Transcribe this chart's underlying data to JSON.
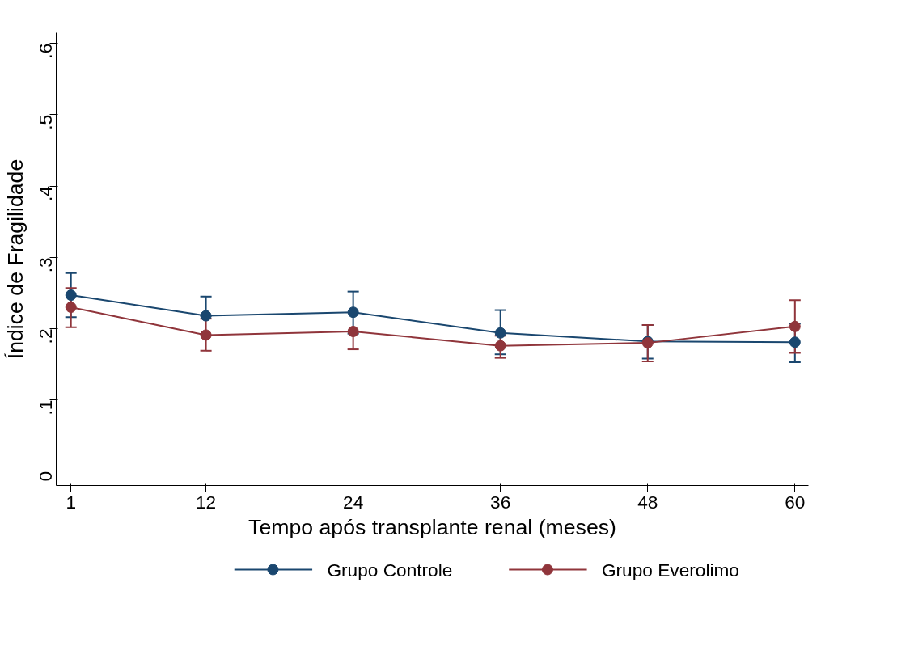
{
  "chart_data": {
    "type": "line",
    "xlabel": "Tempo após transplante renal (meses)",
    "ylabel": "Índice de Fragilidade",
    "x": [
      1,
      12,
      24,
      36,
      48,
      60
    ],
    "series": [
      {
        "name": "Grupo Controle",
        "color": "#1a476f",
        "values": [
          0.247,
          0.218,
          0.223,
          0.194,
          0.182,
          0.181
        ],
        "errors": [
          [
            0.216,
            0.278
          ],
          [
            0.218,
            0.245
          ],
          [
            0.193,
            0.252
          ],
          [
            0.164,
            0.226
          ],
          [
            0.158,
            0.205
          ],
          [
            0.153,
            0.207
          ]
        ]
      },
      {
        "name": "Grupo Everolimo",
        "color": "#90353b",
        "values": [
          0.23,
          0.191,
          0.196,
          0.176,
          0.18,
          0.203
        ],
        "errors": [
          [
            0.202,
            0.257
          ],
          [
            0.169,
            0.214
          ],
          [
            0.171,
            0.196
          ],
          [
            0.159,
            0.19
          ],
          [
            0.154,
            0.205
          ],
          [
            0.166,
            0.24
          ]
        ]
      }
    ],
    "xlim": [
      -0.2,
      61.1
    ],
    "ylim": [
      -0.02,
      0.615
    ],
    "xticks": [
      1,
      12,
      24,
      36,
      48,
      60
    ],
    "yticks": [
      {
        "value": 0,
        "label": "0"
      },
      {
        "value": 0.1,
        "label": ".1"
      },
      {
        "value": 0.2,
        "label": ".2"
      },
      {
        "value": 0.3,
        "label": ".3"
      },
      {
        "value": 0.4,
        "label": ".4"
      },
      {
        "value": 0.5,
        "label": ".5"
      },
      {
        "value": 0.6,
        "label": ".6"
      }
    ],
    "grid": false,
    "legend": "bottom",
    "marker": "circle",
    "line_style": "solid"
  }
}
